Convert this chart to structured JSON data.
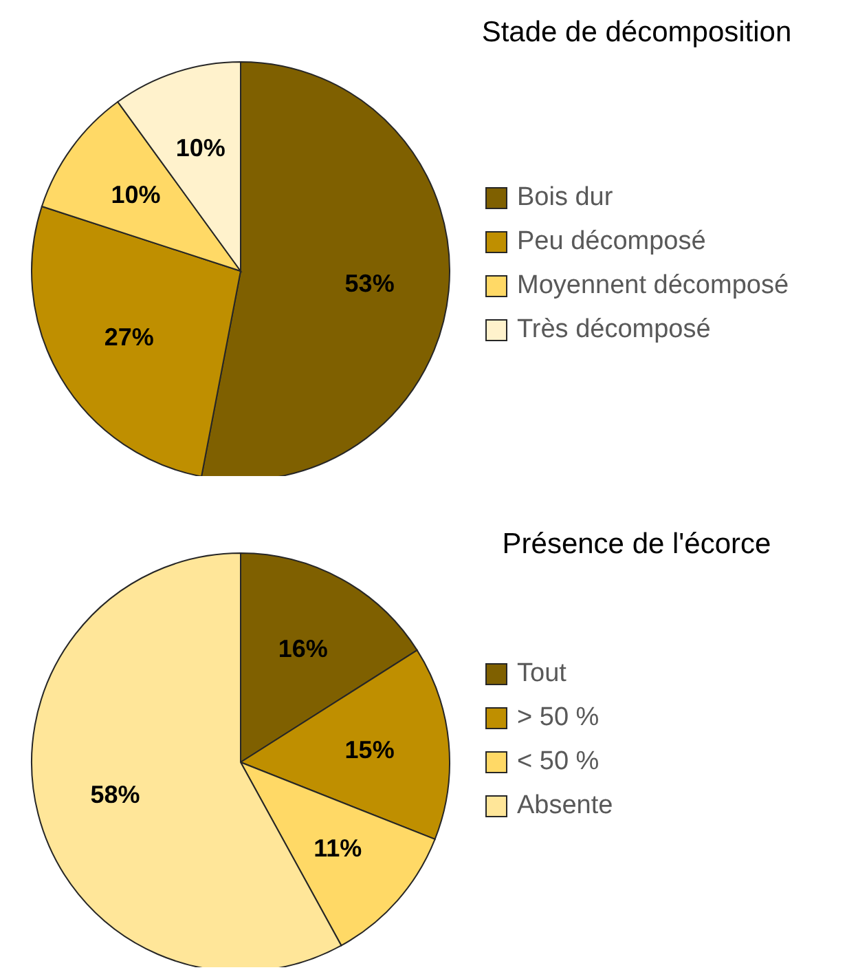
{
  "chart_data": [
    {
      "type": "pie",
      "title": "Stade de décomposition",
      "categories": [
        "Bois dur",
        "Peu décomposé",
        "Moyennent décomposé",
        "Très décomposé"
      ],
      "values": [
        53,
        27,
        10,
        10
      ],
      "value_labels": [
        "53%",
        "27%",
        "10%",
        "10%"
      ],
      "colors": [
        "#7f6000",
        "#bf8f00",
        "#ffd966",
        "#fff2cc"
      ],
      "legend": "right"
    },
    {
      "type": "pie",
      "title": "Présence de l'écorce",
      "categories": [
        "Tout",
        "> 50 %",
        "< 50 %",
        "Absente"
      ],
      "values": [
        16,
        15,
        11,
        58
      ],
      "value_labels": [
        "16%",
        "15%",
        "11%",
        "58%"
      ],
      "colors": [
        "#7f6000",
        "#bf8f00",
        "#ffd966",
        "#ffe699"
      ],
      "legend": "right"
    }
  ]
}
